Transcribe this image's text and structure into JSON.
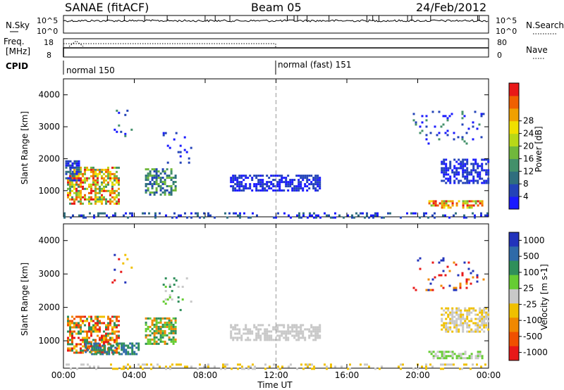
{
  "header": {
    "left": "SANAE (fitACF)",
    "center": "Beam 05",
    "right": "24/Feb/2012"
  },
  "top_panel": {
    "left_label": "N.Sky",
    "right_label": "N.Search",
    "left_ticks": [
      "10^5",
      "10^0"
    ],
    "right_ticks": [
      "10^5",
      "10^0"
    ]
  },
  "freq_panel": {
    "left_label_1": "Freq.",
    "left_label_2": "[MHz]",
    "left_ticks": [
      "18",
      "8"
    ],
    "right_label": "Nave",
    "right_ticks": [
      "80",
      "0"
    ]
  },
  "cpid_panel": {
    "label": "CPID",
    "modes": [
      {
        "name": "normal 150",
        "start_hour": 0
      },
      {
        "name": "normal (fast) 151",
        "start_hour": 12
      }
    ]
  },
  "chart_data": [
    {
      "type": "heatmap",
      "name": "power",
      "ylabel": "Slant Range [km]",
      "ylim": [
        180,
        4500
      ],
      "yticks": [
        1000,
        2000,
        3000,
        4000
      ],
      "xlim": [
        0,
        24
      ],
      "xticks": [
        "00:00",
        "04:00",
        "08:00",
        "12:00",
        "16:00",
        "20:00",
        "00:00"
      ],
      "colorbar": {
        "label": "Power [dB]",
        "ticks": [
          "4",
          "8",
          "12",
          "16",
          "20",
          "24",
          "28"
        ],
        "colors": [
          "#1a1aff",
          "#2343b8",
          "#2f6e7e",
          "#43906a",
          "#70b83c",
          "#b8d818",
          "#f0e000",
          "#f0a000",
          "#f06000",
          "#e81818"
        ]
      },
      "clusters": [
        {
          "t0": 0.2,
          "t1": 3.1,
          "r0": 620,
          "r1": 1750,
          "levels": [
            3,
            4,
            5,
            6,
            7,
            8,
            9
          ]
        },
        {
          "t0": 0.1,
          "t1": 0.9,
          "r0": 1300,
          "r1": 1950,
          "levels": [
            0,
            1,
            2
          ]
        },
        {
          "t0": 4.6,
          "t1": 6.3,
          "r0": 900,
          "r1": 1700,
          "levels": [
            1,
            2,
            3,
            4
          ]
        },
        {
          "t0": 9.4,
          "t1": 14.5,
          "r0": 1000,
          "r1": 1500,
          "levels": [
            0,
            1
          ]
        },
        {
          "t0": 20.6,
          "t1": 23.6,
          "r0": 500,
          "r1": 700,
          "levels": [
            4,
            5,
            6,
            7,
            8,
            9
          ]
        },
        {
          "t0": 21.3,
          "t1": 24.0,
          "r0": 1250,
          "r1": 2000,
          "levels": [
            0,
            1
          ]
        },
        {
          "t0": 0.0,
          "t1": 24.0,
          "r0": 180,
          "r1": 320,
          "levels": [
            0,
            1,
            2
          ]
        },
        {
          "t0": 2.6,
          "t1": 3.8,
          "r0": 2700,
          "r1": 3600,
          "levels": [
            0,
            1,
            3
          ]
        },
        {
          "t0": 5.6,
          "t1": 7.2,
          "r0": 1900,
          "r1": 2900,
          "levels": [
            0,
            1
          ]
        },
        {
          "t0": 19.6,
          "t1": 23.7,
          "r0": 2500,
          "r1": 3500,
          "levels": [
            0,
            1,
            3
          ]
        }
      ]
    },
    {
      "type": "heatmap",
      "name": "velocity",
      "ylabel": "Slant Range [km]",
      "ylim": [
        180,
        4500
      ],
      "yticks": [
        1000,
        2000,
        3000,
        4000
      ],
      "xlim": [
        0,
        24
      ],
      "xlabel": "Time UT",
      "xticks": [
        "00:00",
        "04:00",
        "08:00",
        "12:00",
        "16:00",
        "20:00",
        "00:00"
      ],
      "colorbar": {
        "label": "Velocity [m s-1]",
        "ticks": [
          "1000",
          "500",
          "100",
          "25",
          "-25",
          "-100",
          "-500",
          "-1000"
        ],
        "colors": [
          "#2233bb",
          "#2f6aa8",
          "#2f8f5a",
          "#66cc33",
          "#c8c8c8",
          "#f0c000",
          "#f08800",
          "#f05000",
          "#e81818"
        ]
      },
      "clusters": [
        {
          "t0": 0.2,
          "t1": 3.1,
          "r0": 620,
          "r1": 1750,
          "levels": [
            5,
            6,
            7,
            8,
            2
          ]
        },
        {
          "t0": 1.2,
          "t1": 4.2,
          "r0": 600,
          "r1": 950,
          "levels": [
            1,
            2
          ]
        },
        {
          "t0": 4.6,
          "t1": 6.3,
          "r0": 900,
          "r1": 1700,
          "levels": [
            2,
            3,
            6
          ]
        },
        {
          "t0": 9.4,
          "t1": 14.5,
          "r0": 1000,
          "r1": 1500,
          "levels": [
            4
          ]
        },
        {
          "t0": 20.6,
          "t1": 23.6,
          "r0": 500,
          "r1": 700,
          "levels": [
            3,
            4
          ]
        },
        {
          "t0": 21.3,
          "t1": 24.0,
          "r0": 1250,
          "r1": 2000,
          "levels": [
            4,
            5
          ]
        },
        {
          "t0": 0.0,
          "t1": 24.0,
          "r0": 180,
          "r1": 320,
          "levels": [
            4,
            5
          ]
        },
        {
          "t0": 2.6,
          "t1": 3.8,
          "r0": 2700,
          "r1": 3600,
          "levels": [
            0,
            8,
            5
          ]
        },
        {
          "t0": 5.6,
          "t1": 7.2,
          "r0": 1900,
          "r1": 2900,
          "levels": [
            3,
            2,
            4
          ]
        },
        {
          "t0": 19.6,
          "t1": 23.7,
          "r0": 2500,
          "r1": 3500,
          "levels": [
            0,
            6,
            8
          ]
        }
      ]
    }
  ]
}
